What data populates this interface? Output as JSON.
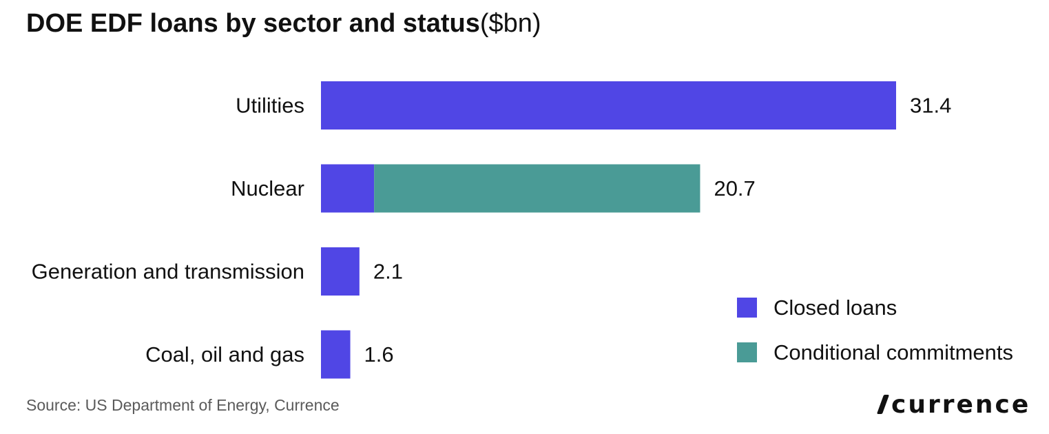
{
  "header": {
    "title": "DOE EDF loans by sector and status",
    "unit": "($bn)"
  },
  "footer": {
    "source": "Source: US Department of Energy, Currence",
    "logo_text": "currence"
  },
  "colors": {
    "closed": "#5046e5",
    "conditional": "#4a9b96",
    "text": "#111111",
    "muted": "#5a5a5a"
  },
  "chart_data": {
    "type": "bar",
    "orientation": "horizontal",
    "stacked": true,
    "title": "DOE EDF loans by sector and status",
    "unit": "($bn)",
    "categories": [
      "Utilities",
      "Nuclear",
      "Generation and transmission",
      "Coal, oil and gas"
    ],
    "series": [
      {
        "name": "Closed loans",
        "values": [
          31.4,
          2.9,
          2.1,
          1.6
        ],
        "color": "#5046e5"
      },
      {
        "name": "Conditional commitments",
        "values": [
          0,
          17.8,
          0,
          0
        ],
        "color": "#4a9b96"
      }
    ],
    "totals": [
      31.4,
      20.7,
      2.1,
      1.6
    ],
    "total_labels": [
      "31.4",
      "20.7",
      "2.1",
      "1.6"
    ],
    "xlim": [
      0,
      31.4
    ],
    "grid": false,
    "legend_position": "bottom-right"
  }
}
